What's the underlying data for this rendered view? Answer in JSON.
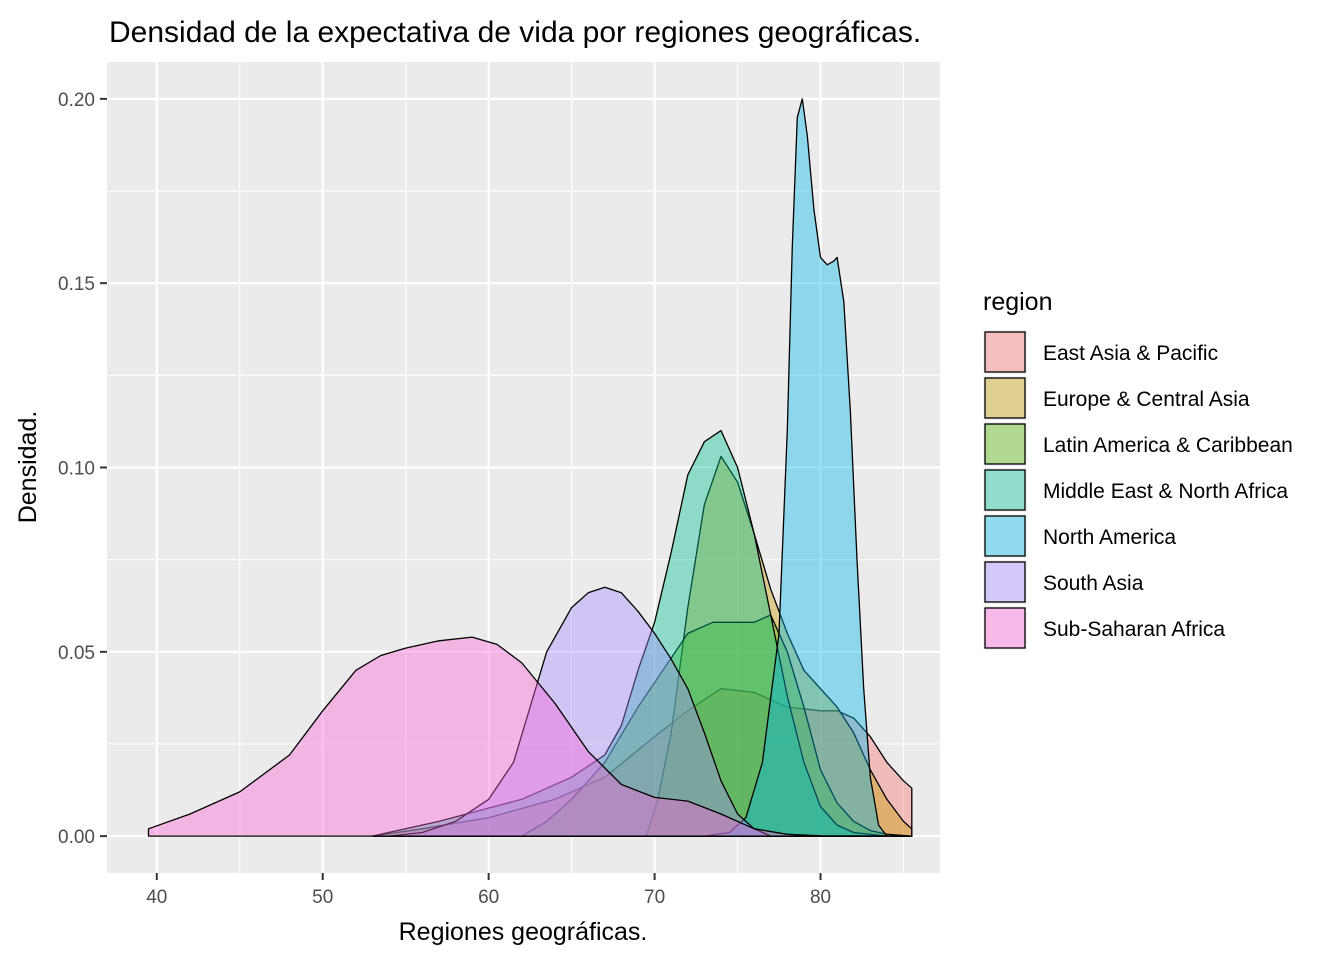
{
  "chart_data": {
    "type": "area",
    "subtype": "density",
    "title": "Densidad de la expectativa de vida por regiones geográficas.",
    "xlabel": "Regiones geográficas.",
    "ylabel": "Densidad.",
    "xlim": [
      37,
      87.2
    ],
    "ylim": [
      -0.01,
      0.21
    ],
    "x_ticks": [
      40,
      50,
      60,
      70,
      80
    ],
    "y_ticks": [
      0,
      0.05,
      0.1,
      0.15,
      0.2
    ],
    "x_tick_labels": [
      "40",
      "50",
      "60",
      "70",
      "80"
    ],
    "y_tick_labels": [
      "0.00",
      "0.05",
      "0.10",
      "0.15",
      "0.20"
    ],
    "grid": true,
    "panel_background": "#EBEBEB",
    "legend": {
      "title": "region",
      "position": "right"
    },
    "series": [
      {
        "name": "East Asia & Pacific",
        "color": "#F8766D",
        "points": [
          [
            53,
            0
          ],
          [
            56,
            0.002
          ],
          [
            60,
            0.005
          ],
          [
            64,
            0.01
          ],
          [
            67,
            0.016
          ],
          [
            70,
            0.027
          ],
          [
            72,
            0.034
          ],
          [
            74,
            0.04
          ],
          [
            76,
            0.039
          ],
          [
            78,
            0.035
          ],
          [
            80,
            0.034
          ],
          [
            81,
            0.034
          ],
          [
            82,
            0.032
          ],
          [
            83,
            0.027
          ],
          [
            84,
            0.02
          ],
          [
            85,
            0.015
          ],
          [
            85.5,
            0.013
          ]
        ]
      },
      {
        "name": "Europe & Central Asia",
        "color": "#C49A00",
        "points": [
          [
            69.5,
            0
          ],
          [
            70.2,
            0.01
          ],
          [
            71,
            0.028
          ],
          [
            72,
            0.062
          ],
          [
            73,
            0.09
          ],
          [
            74,
            0.103
          ],
          [
            75,
            0.096
          ],
          [
            76,
            0.082
          ],
          [
            77,
            0.067
          ],
          [
            78,
            0.055
          ],
          [
            79,
            0.045
          ],
          [
            80,
            0.04
          ],
          [
            81,
            0.035
          ],
          [
            82,
            0.028
          ],
          [
            83,
            0.018
          ],
          [
            84,
            0.01
          ],
          [
            85,
            0.004
          ],
          [
            85.5,
            0.002
          ]
        ]
      },
      {
        "name": "Latin America & Caribbean",
        "color": "#53B400",
        "points": [
          [
            62,
            0
          ],
          [
            63.5,
            0.004
          ],
          [
            65,
            0.01
          ],
          [
            67,
            0.02
          ],
          [
            69,
            0.035
          ],
          [
            70.5,
            0.045
          ],
          [
            72,
            0.055
          ],
          [
            73.5,
            0.058
          ],
          [
            75,
            0.058
          ],
          [
            76,
            0.058
          ],
          [
            77,
            0.06
          ],
          [
            78,
            0.05
          ],
          [
            79,
            0.035
          ],
          [
            80,
            0.018
          ],
          [
            81,
            0.009
          ],
          [
            82,
            0.004
          ],
          [
            83,
            0.0015
          ],
          [
            84,
            0.0005
          ],
          [
            85.5,
            0
          ]
        ]
      },
      {
        "name": "Middle East & North Africa",
        "color": "#00C094",
        "points": [
          [
            53,
            0
          ],
          [
            57,
            0.004
          ],
          [
            62,
            0.01
          ],
          [
            65,
            0.016
          ],
          [
            67,
            0.022
          ],
          [
            68,
            0.03
          ],
          [
            69,
            0.045
          ],
          [
            70,
            0.058
          ],
          [
            71,
            0.077
          ],
          [
            72,
            0.098
          ],
          [
            73,
            0.107
          ],
          [
            74,
            0.11
          ],
          [
            75,
            0.1
          ],
          [
            76,
            0.082
          ],
          [
            77,
            0.06
          ],
          [
            78,
            0.038
          ],
          [
            79,
            0.02
          ],
          [
            80,
            0.008
          ],
          [
            81,
            0.003
          ],
          [
            82,
            0.001
          ],
          [
            84,
            0
          ],
          [
            85.5,
            0
          ]
        ]
      },
      {
        "name": "North America",
        "color": "#00B6EB",
        "points": [
          [
            69.5,
            0
          ],
          [
            70.5,
            0
          ],
          [
            73,
            0
          ],
          [
            74.5,
            0.001
          ],
          [
            75.5,
            0.005
          ],
          [
            76.5,
            0.02
          ],
          [
            77.5,
            0.055
          ],
          [
            78,
            0.11
          ],
          [
            78.3,
            0.16
          ],
          [
            78.6,
            0.195
          ],
          [
            78.9,
            0.2
          ],
          [
            79.2,
            0.19
          ],
          [
            79.6,
            0.17
          ],
          [
            80,
            0.157
          ],
          [
            80.4,
            0.155
          ],
          [
            80.8,
            0.156
          ],
          [
            81,
            0.157
          ],
          [
            81.4,
            0.145
          ],
          [
            81.8,
            0.115
          ],
          [
            82.2,
            0.075
          ],
          [
            82.6,
            0.04
          ],
          [
            83,
            0.016
          ],
          [
            83.5,
            0.003
          ],
          [
            84,
            0
          ],
          [
            85.5,
            0
          ]
        ]
      },
      {
        "name": "South Asia",
        "color": "#A58AFF",
        "points": [
          [
            54,
            0
          ],
          [
            56,
            0.001
          ],
          [
            58,
            0.004
          ],
          [
            60,
            0.01
          ],
          [
            61.5,
            0.02
          ],
          [
            62.5,
            0.035
          ],
          [
            63.5,
            0.05
          ],
          [
            65,
            0.062
          ],
          [
            66,
            0.066
          ],
          [
            67,
            0.0675
          ],
          [
            68,
            0.066
          ],
          [
            69,
            0.061
          ],
          [
            70,
            0.055
          ],
          [
            71,
            0.048
          ],
          [
            72,
            0.04
          ],
          [
            73,
            0.028
          ],
          [
            74,
            0.015
          ],
          [
            75,
            0.006
          ],
          [
            76,
            0.002
          ],
          [
            77,
            0
          ],
          [
            85.5,
            0
          ]
        ]
      },
      {
        "name": "Sub-Saharan Africa",
        "color": "#FB61D7",
        "points": [
          [
            39.5,
            0.002
          ],
          [
            42,
            0.006
          ],
          [
            45,
            0.012
          ],
          [
            48,
            0.022
          ],
          [
            50,
            0.034
          ],
          [
            52,
            0.045
          ],
          [
            53.5,
            0.049
          ],
          [
            55,
            0.051
          ],
          [
            57,
            0.053
          ],
          [
            59,
            0.054
          ],
          [
            60.5,
            0.052
          ],
          [
            62,
            0.047
          ],
          [
            64,
            0.036
          ],
          [
            66,
            0.023
          ],
          [
            68,
            0.014
          ],
          [
            70,
            0.0105
          ],
          [
            72,
            0.0095
          ],
          [
            74,
            0.006
          ],
          [
            76,
            0.002
          ],
          [
            78,
            0.0005
          ],
          [
            80,
            0.0001
          ],
          [
            85.5,
            0
          ]
        ]
      }
    ]
  }
}
